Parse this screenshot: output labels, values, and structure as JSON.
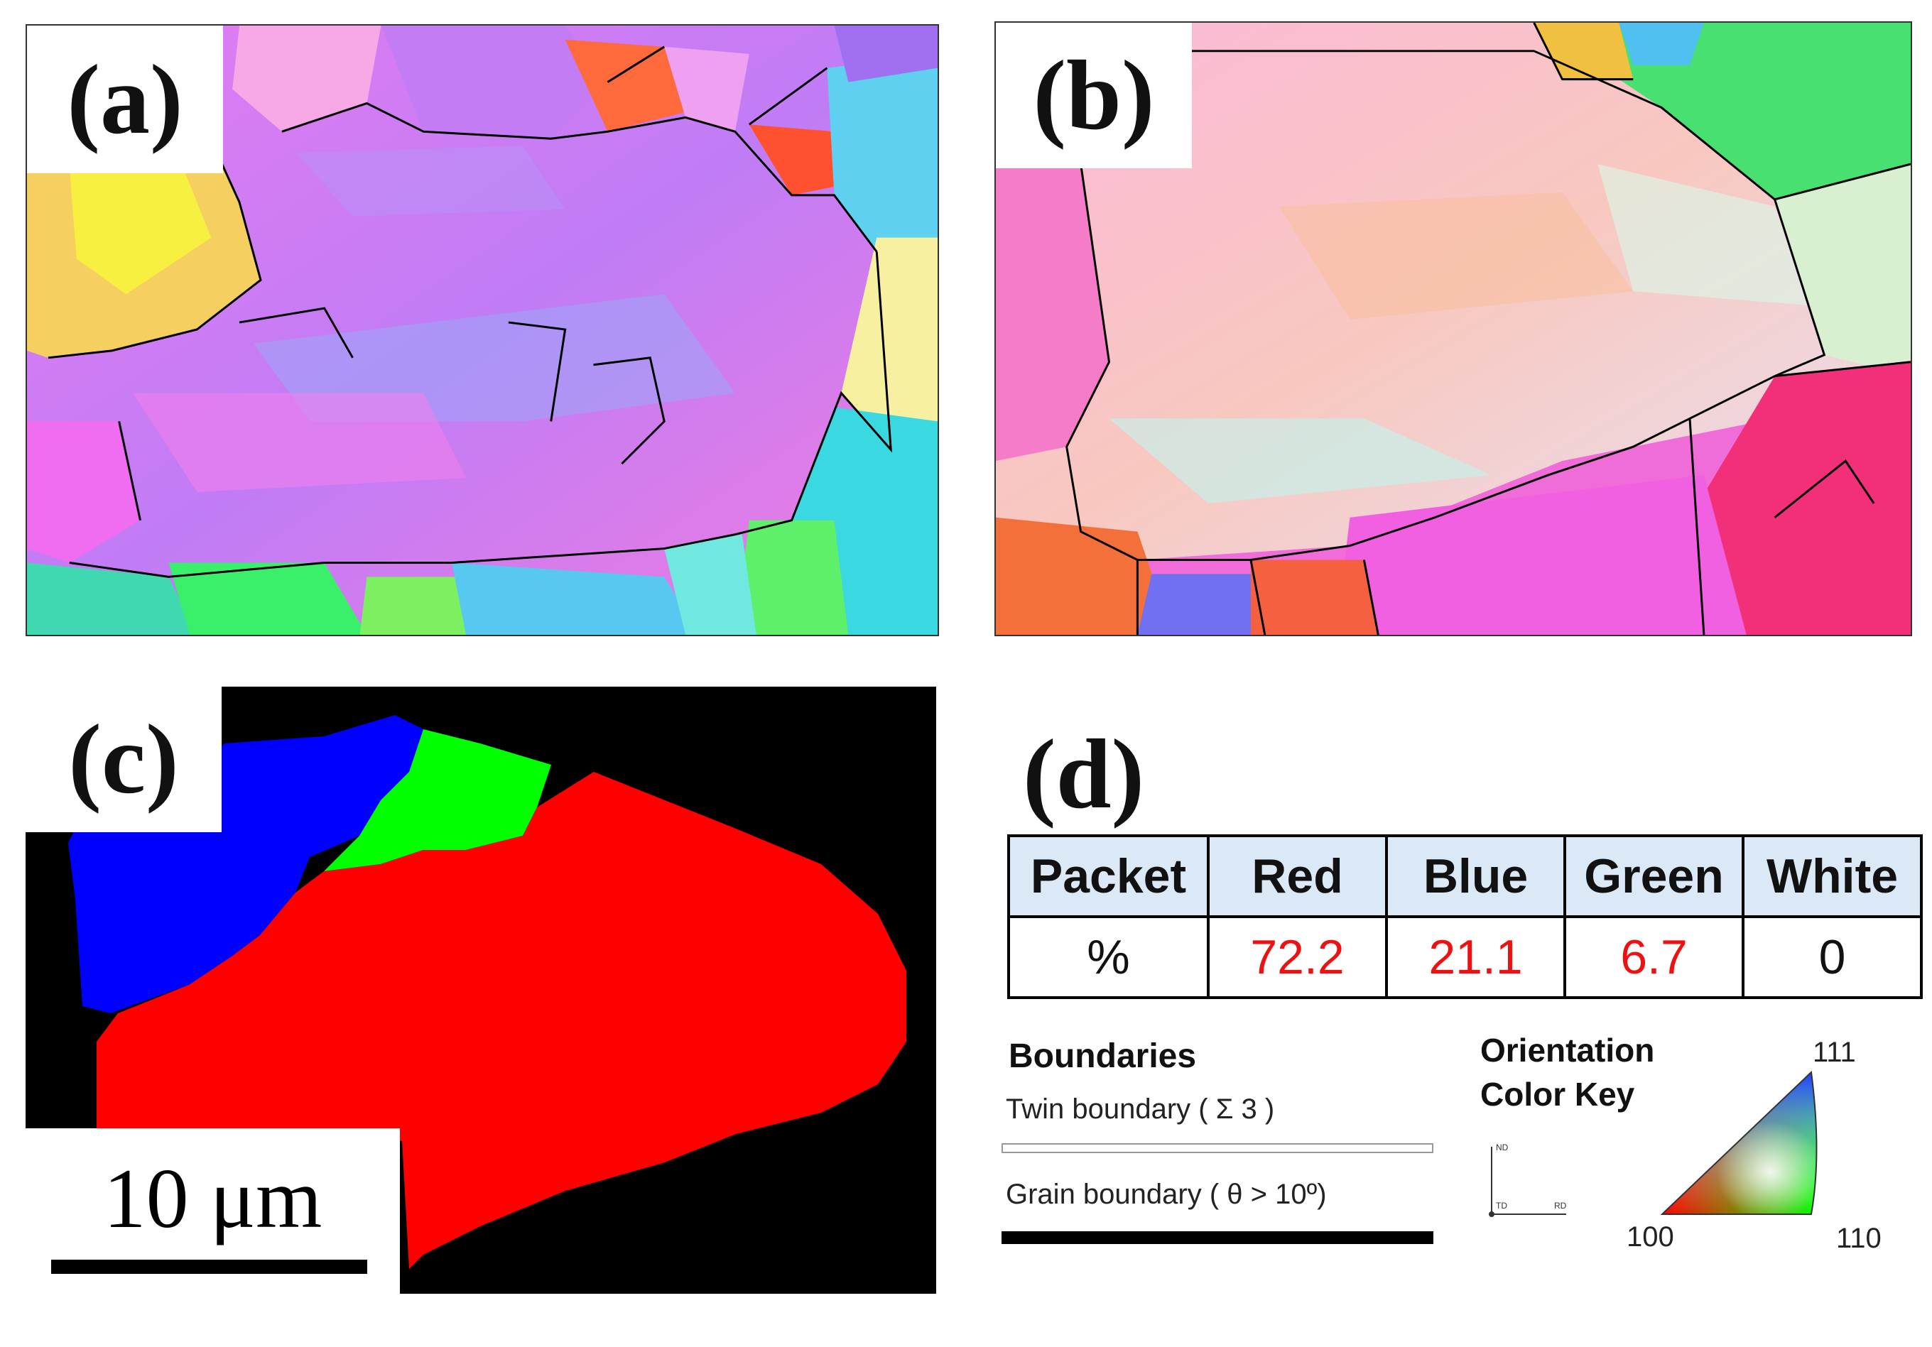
{
  "panels": {
    "a": {
      "label": "(a)"
    },
    "b": {
      "label": "(b)"
    },
    "c": {
      "label": "(c)",
      "scale_bar": "10 μm"
    },
    "d": {
      "label": "(d)"
    }
  },
  "table": {
    "header": [
      "Packet",
      "Red",
      "Blue",
      "Green",
      "White"
    ],
    "row": [
      "%",
      "72.2",
      "21.1",
      "6.7",
      "0"
    ]
  },
  "legend": {
    "boundaries_title": "Boundaries",
    "twin": "Twin boundary ( Σ 3 )",
    "grain": "Grain boundary ( θ > 10º)",
    "orientation_title_1": "Orientation",
    "orientation_title_2": "Color Key",
    "axis_nd": "ND",
    "axis_td": "TD",
    "axis_rd": "RD",
    "pole_111": "111",
    "pole_100": "100",
    "pole_110": "110"
  },
  "colors": {
    "packet_red": "#ff0000",
    "packet_blue": "#0000ff",
    "packet_green": "#00ff00",
    "highlight_value": "#ee1111"
  }
}
